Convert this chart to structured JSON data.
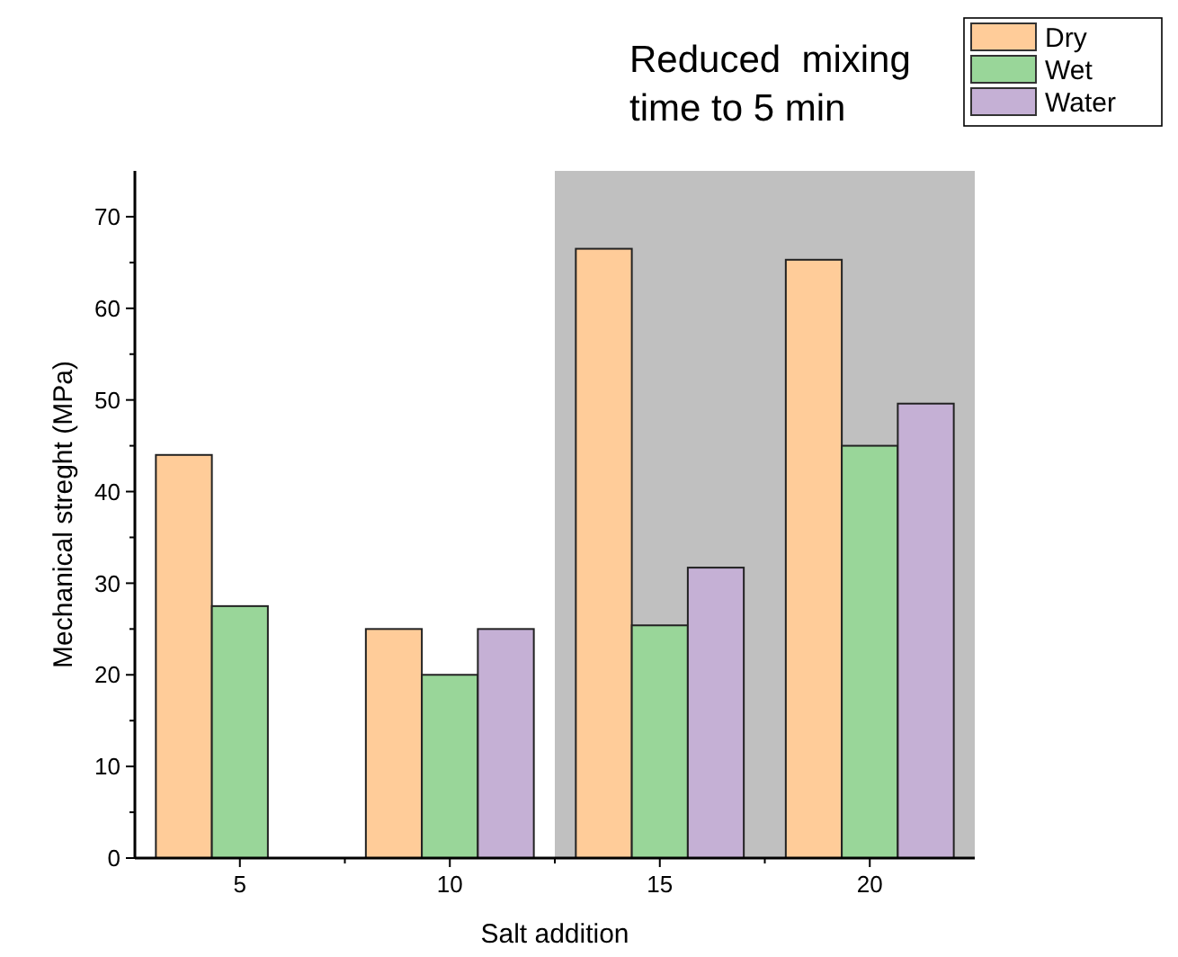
{
  "chart_data": {
    "type": "bar",
    "xlabel": "Salt addition",
    "ylabel": "Mechanical streght (MPa)",
    "x": [
      5,
      10,
      15,
      20
    ],
    "xlim": [
      2.5,
      22.5
    ],
    "xticks": [
      5,
      {
        "value": 7.5,
        "label": null
      },
      10,
      {
        "value": 12.5,
        "label": null
      },
      15,
      {
        "value": 17.5,
        "label": null
      },
      20
    ],
    "ylim": [
      0,
      75
    ],
    "yticks": [
      0,
      {
        "value": 5,
        "label": null
      },
      10,
      {
        "value": 15,
        "label": null
      },
      20,
      {
        "value": 25,
        "label": null
      },
      30,
      {
        "value": 35,
        "label": null
      },
      40,
      {
        "value": 45,
        "label": null
      },
      50,
      {
        "value": 55,
        "label": null
      },
      60,
      {
        "value": 65,
        "label": null
      },
      70
    ],
    "series": [
      {
        "name": "Dry",
        "color": "#ffcc99",
        "values": [
          44,
          25,
          66.5,
          65.3
        ]
      },
      {
        "name": "Wet",
        "color": "#99d699",
        "values": [
          27.5,
          20,
          25.4,
          45
        ]
      },
      {
        "name": "Water",
        "color": "#c5b0d5",
        "values": [
          null,
          25,
          31.7,
          49.6
        ]
      }
    ],
    "bands": [
      {
        "axis": "x",
        "from": 12.5,
        "to": 22.5,
        "color": "#c0c0c0"
      }
    ],
    "annotations": [
      "Reduced  mixing time to 5 min"
    ],
    "legend": "top right",
    "grid": false
  }
}
